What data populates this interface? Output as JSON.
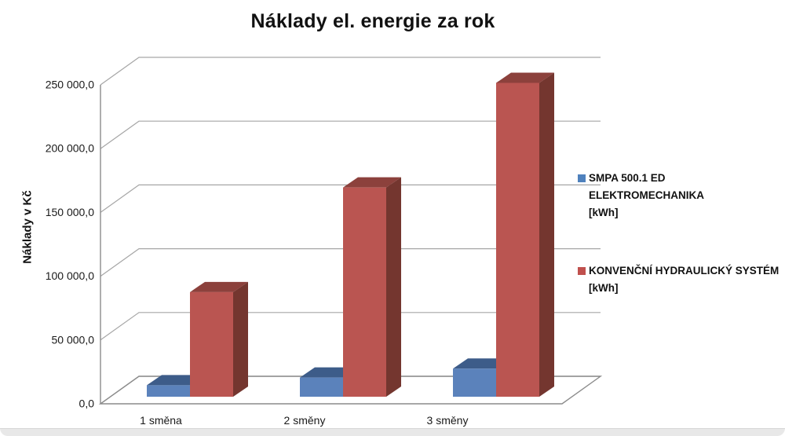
{
  "chart_data": {
    "type": "bar",
    "variant": "3d-clustered-column",
    "title": "Náklady el. energie za rok",
    "ylabel": "Náklady v Kč",
    "xlabel": "",
    "categories": [
      "1 směna",
      "2 směny",
      "3 směny"
    ],
    "series": [
      {
        "name": "SMPA 500.1 ED ELEKTROMECHANIKA [kWh]",
        "legend_label": "SMPA 500.1 ED\nELEKTROMECHANIKA\n[kWh]",
        "color": "#5b82bb",
        "top_color": "#3d5c89",
        "side_color": "#30507c",
        "legend_color": "#4f81bd",
        "values": [
          9000,
          15000,
          22000
        ]
      },
      {
        "name": "KONVENČNÍ HYDRAULICKÝ SYSTÉM [kWh]",
        "legend_label": "KONVENČNÍ HYDRAULICKÝ SYSTÉM\n[kWh]",
        "color": "#ba5551",
        "top_color": "#8c413c",
        "side_color": "#74362f",
        "legend_color": "#c0504d",
        "values": [
          82000,
          164000,
          246000
        ]
      }
    ],
    "y_axis": {
      "min": 0,
      "max": 250000,
      "tick_step": 50000,
      "tick_labels": [
        "0,0",
        "50 000,0",
        "100 000,0",
        "150 000,0",
        "200 000,0",
        "250 000,0"
      ]
    },
    "ylim": [
      0,
      250000
    ],
    "grid": true,
    "legend_position": "right",
    "grid_color": "#a6a6a6",
    "axis_color": "#8c8c8c"
  }
}
